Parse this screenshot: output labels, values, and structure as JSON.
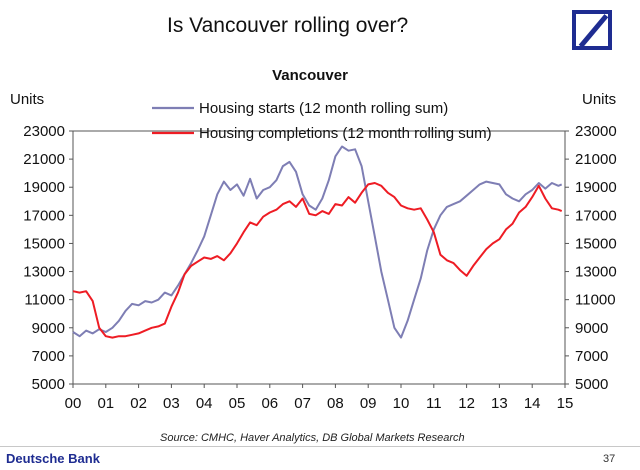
{
  "header": {
    "title": "Is Vancouver rolling over?",
    "logo_icon": "deutsche-bank-logo-icon"
  },
  "footer": {
    "source": "Source: CMHC, Haver Analytics, DB Global Markets Research",
    "brand": "Deutsche Bank",
    "page_number": "37"
  },
  "chart_data": {
    "type": "line",
    "title": "Vancouver",
    "ylabel_left": "Units",
    "ylabel_right": "Units",
    "ylim": [
      5000,
      23000
    ],
    "yticks": [
      "5000",
      "7000",
      "9000",
      "11000",
      "13000",
      "15000",
      "17000",
      "19000",
      "21000",
      "23000"
    ],
    "xticks": [
      "00",
      "01",
      "02",
      "03",
      "04",
      "05",
      "06",
      "07",
      "08",
      "09",
      "10",
      "11",
      "12",
      "13",
      "14",
      "15"
    ],
    "xlim": [
      2000.0,
      2014.9
    ],
    "legend_position": "top-center",
    "grid": false,
    "series": [
      {
        "name": "Housing starts (12 month rolling sum)",
        "color": "#7e7eb4",
        "points": [
          [
            2000.0,
            8700
          ],
          [
            2000.2,
            8400
          ],
          [
            2000.4,
            8800
          ],
          [
            2000.6,
            8600
          ],
          [
            2000.8,
            8900
          ],
          [
            2001.0,
            8700
          ],
          [
            2001.2,
            9000
          ],
          [
            2001.4,
            9500
          ],
          [
            2001.6,
            10200
          ],
          [
            2001.8,
            10700
          ],
          [
            2002.0,
            10600
          ],
          [
            2002.2,
            10900
          ],
          [
            2002.4,
            10800
          ],
          [
            2002.6,
            11000
          ],
          [
            2002.8,
            11500
          ],
          [
            2003.0,
            11300
          ],
          [
            2003.2,
            12000
          ],
          [
            2003.4,
            12800
          ],
          [
            2003.6,
            13600
          ],
          [
            2003.8,
            14500
          ],
          [
            2004.0,
            15500
          ],
          [
            2004.2,
            17000
          ],
          [
            2004.4,
            18500
          ],
          [
            2004.6,
            19400
          ],
          [
            2004.8,
            18800
          ],
          [
            2005.0,
            19200
          ],
          [
            2005.2,
            18400
          ],
          [
            2005.4,
            19600
          ],
          [
            2005.6,
            18200
          ],
          [
            2005.8,
            18800
          ],
          [
            2006.0,
            19000
          ],
          [
            2006.2,
            19500
          ],
          [
            2006.4,
            20500
          ],
          [
            2006.6,
            20800
          ],
          [
            2006.8,
            20100
          ],
          [
            2007.0,
            18500
          ],
          [
            2007.2,
            17700
          ],
          [
            2007.4,
            17400
          ],
          [
            2007.6,
            18200
          ],
          [
            2007.8,
            19500
          ],
          [
            2008.0,
            21200
          ],
          [
            2008.2,
            21900
          ],
          [
            2008.4,
            21600
          ],
          [
            2008.6,
            21700
          ],
          [
            2008.8,
            20500
          ],
          [
            2009.0,
            18000
          ],
          [
            2009.2,
            15500
          ],
          [
            2009.4,
            13000
          ],
          [
            2009.6,
            11000
          ],
          [
            2009.8,
            9000
          ],
          [
            2010.0,
            8300
          ],
          [
            2010.2,
            9500
          ],
          [
            2010.4,
            11000
          ],
          [
            2010.6,
            12500
          ],
          [
            2010.8,
            14500
          ],
          [
            2011.0,
            16000
          ],
          [
            2011.2,
            17000
          ],
          [
            2011.4,
            17600
          ],
          [
            2011.6,
            17800
          ],
          [
            2011.8,
            18000
          ],
          [
            2012.0,
            18400
          ],
          [
            2012.2,
            18800
          ],
          [
            2012.4,
            19200
          ],
          [
            2012.6,
            19400
          ],
          [
            2012.8,
            19300
          ],
          [
            2013.0,
            19200
          ],
          [
            2013.2,
            18500
          ],
          [
            2013.4,
            18200
          ],
          [
            2013.6,
            18000
          ],
          [
            2013.8,
            18500
          ],
          [
            2014.0,
            18800
          ],
          [
            2014.2,
            19300
          ],
          [
            2014.4,
            18900
          ],
          [
            2014.6,
            19300
          ],
          [
            2014.8,
            19100
          ],
          [
            2014.9,
            19200
          ]
        ]
      },
      {
        "name": "Housing completions (12 month rolling sum)",
        "color": "#ee1c24",
        "points": [
          [
            2000.0,
            11600
          ],
          [
            2000.2,
            11500
          ],
          [
            2000.4,
            11600
          ],
          [
            2000.6,
            10900
          ],
          [
            2000.8,
            9000
          ],
          [
            2001.0,
            8400
          ],
          [
            2001.2,
            8300
          ],
          [
            2001.4,
            8400
          ],
          [
            2001.6,
            8400
          ],
          [
            2001.8,
            8500
          ],
          [
            2002.0,
            8600
          ],
          [
            2002.2,
            8800
          ],
          [
            2002.4,
            9000
          ],
          [
            2002.6,
            9100
          ],
          [
            2002.8,
            9300
          ],
          [
            2003.0,
            10500
          ],
          [
            2003.2,
            11500
          ],
          [
            2003.4,
            12800
          ],
          [
            2003.6,
            13400
          ],
          [
            2003.8,
            13700
          ],
          [
            2004.0,
            14000
          ],
          [
            2004.2,
            13900
          ],
          [
            2004.4,
            14100
          ],
          [
            2004.6,
            13800
          ],
          [
            2004.8,
            14300
          ],
          [
            2005.0,
            15000
          ],
          [
            2005.2,
            15800
          ],
          [
            2005.4,
            16500
          ],
          [
            2005.6,
            16300
          ],
          [
            2005.8,
            16900
          ],
          [
            2006.0,
            17200
          ],
          [
            2006.2,
            17400
          ],
          [
            2006.4,
            17800
          ],
          [
            2006.6,
            18000
          ],
          [
            2006.8,
            17600
          ],
          [
            2007.0,
            18200
          ],
          [
            2007.2,
            17100
          ],
          [
            2007.4,
            17000
          ],
          [
            2007.6,
            17300
          ],
          [
            2007.8,
            17100
          ],
          [
            2008.0,
            17800
          ],
          [
            2008.2,
            17700
          ],
          [
            2008.4,
            18300
          ],
          [
            2008.6,
            17900
          ],
          [
            2008.8,
            18600
          ],
          [
            2009.0,
            19200
          ],
          [
            2009.2,
            19300
          ],
          [
            2009.4,
            19100
          ],
          [
            2009.6,
            18600
          ],
          [
            2009.8,
            18300
          ],
          [
            2010.0,
            17700
          ],
          [
            2010.2,
            17500
          ],
          [
            2010.4,
            17400
          ],
          [
            2010.6,
            17500
          ],
          [
            2010.8,
            16700
          ],
          [
            2011.0,
            15800
          ],
          [
            2011.2,
            14200
          ],
          [
            2011.4,
            13800
          ],
          [
            2011.6,
            13600
          ],
          [
            2011.8,
            13100
          ],
          [
            2012.0,
            12700
          ],
          [
            2012.2,
            13400
          ],
          [
            2012.4,
            14000
          ],
          [
            2012.6,
            14600
          ],
          [
            2012.8,
            15000
          ],
          [
            2013.0,
            15300
          ],
          [
            2013.2,
            16000
          ],
          [
            2013.4,
            16400
          ],
          [
            2013.6,
            17200
          ],
          [
            2013.8,
            17600
          ],
          [
            2014.0,
            18300
          ],
          [
            2014.2,
            19100
          ],
          [
            2014.4,
            18200
          ],
          [
            2014.6,
            17500
          ],
          [
            2014.8,
            17400
          ],
          [
            2014.9,
            17300
          ]
        ]
      }
    ]
  }
}
